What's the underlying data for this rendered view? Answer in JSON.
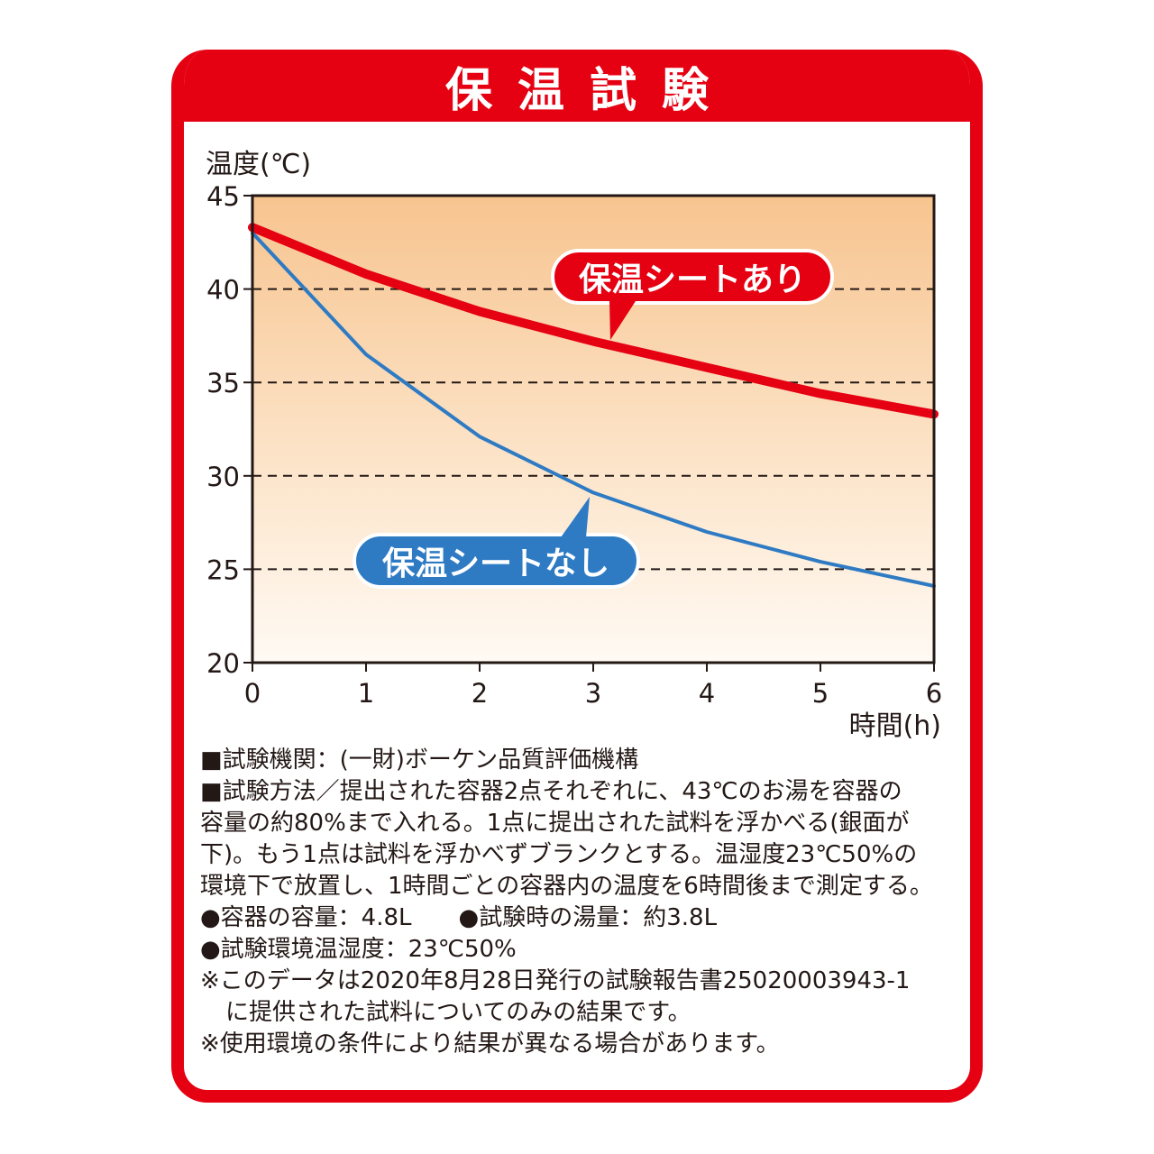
{
  "title": "保温試験",
  "chart_data": {
    "type": "line",
    "ylabel": "温度(℃)",
    "xlabel": "時間(h)",
    "xlim": [
      0,
      6
    ],
    "ylim": [
      20,
      45
    ],
    "xticks": [
      "0",
      "1",
      "2",
      "3",
      "4",
      "5",
      "6"
    ],
    "yticks": [
      "20",
      "25",
      "30",
      "35",
      "40",
      "45"
    ],
    "grid": "dashed horizontal",
    "x": [
      0,
      1,
      2,
      3,
      4,
      5,
      6
    ],
    "series": [
      {
        "name": "保温シートあり",
        "values": [
          43.3,
          40.8,
          38.8,
          37.2,
          35.8,
          34.4,
          33.3
        ],
        "color": "#e50012"
      },
      {
        "name": "保温シートなし",
        "values": [
          43.0,
          36.5,
          32.1,
          29.1,
          27.0,
          25.4,
          24.1
        ],
        "color": "#2e7bc4"
      }
    ]
  },
  "notes": {
    "line1": "■試験機関：(一財)ボーケン品質評価機構",
    "line2": "■試験方法／提出された容器2点それぞれに、43℃のお湯を容器の",
    "line3": "容量の約80%まで入れる。1点に提出された試料を浮かべる(銀面が",
    "line4": "下)。もう1点は試料を浮かべずブランクとする。温湿度23℃50%の",
    "line5": "環境下で放置し、1時間ごとの容器内の温度を6時間後まで測定する。",
    "line6a": "●容器の容量：4.8L",
    "line6b": "●試験時の湯量：約3.8L",
    "line7": "●試験環境温湿度：23℃50%",
    "line8": "※このデータは2020年8月28日発行の試験報告書25020003943-1",
    "line9": "に提供された試料についてのみの結果です。",
    "line10": "※使用環境の条件により結果が異なる場合があります。"
  }
}
